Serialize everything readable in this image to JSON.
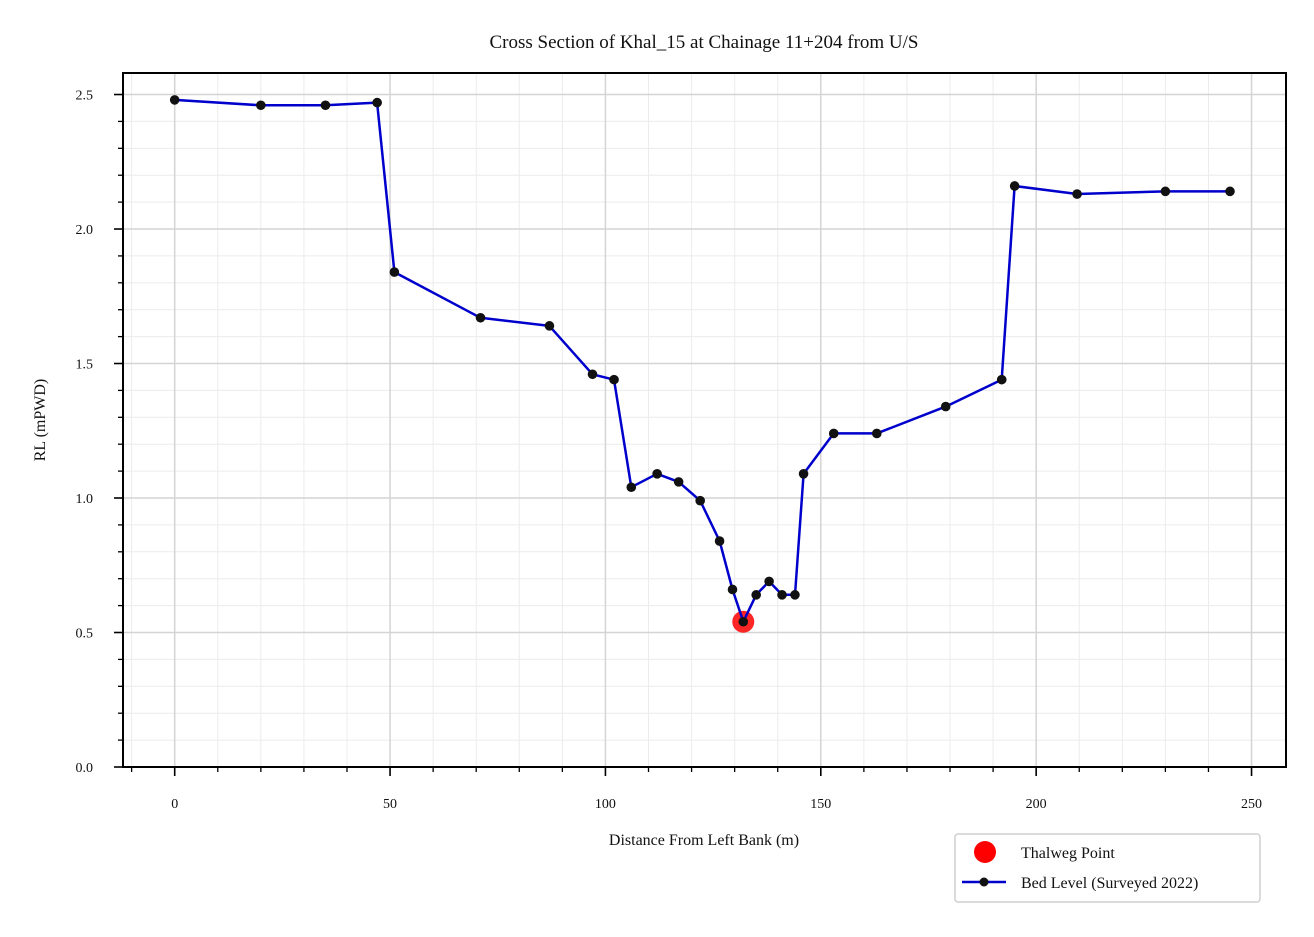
{
  "chart_data": {
    "type": "line",
    "title": "Cross Section of Khal_15 at Chainage 11+204 from U/S",
    "xlabel": "Distance From Left Bank (m)",
    "ylabel": "RL (mPWD)",
    "xlim": [
      -12,
      258
    ],
    "ylim": [
      0,
      2.58
    ],
    "xticks": [
      0,
      50,
      100,
      150,
      200,
      250
    ],
    "yticks": [
      0.0,
      0.5,
      1.0,
      1.5,
      2.0,
      2.5
    ],
    "xtick_labels": [
      "0",
      "50",
      "100",
      "150",
      "200",
      "250"
    ],
    "ytick_labels": [
      "0.0",
      "0.5",
      "1.0",
      "1.5",
      "2.0",
      "2.5"
    ],
    "grid": true,
    "minor_grid": true,
    "legend_position": "bottom-right",
    "series": [
      {
        "name": "Bed Level (Surveyed 2022)",
        "color": "#0000cc",
        "marker_color": "#111111",
        "x": [
          0,
          20,
          35,
          47,
          51,
          71,
          87,
          97,
          102,
          106,
          112,
          117,
          122,
          126.5,
          129.5,
          132,
          135,
          138,
          141,
          144,
          146,
          153,
          163,
          179,
          192,
          195,
          209.5,
          230,
          245
        ],
        "y": [
          2.48,
          2.46,
          2.46,
          2.47,
          1.84,
          1.67,
          1.64,
          1.46,
          1.44,
          1.04,
          1.09,
          1.06,
          0.99,
          0.84,
          0.66,
          0.54,
          0.64,
          0.69,
          0.64,
          0.64,
          1.09,
          1.24,
          1.24,
          1.34,
          1.44,
          2.16,
          2.13,
          2.14,
          2.14
        ]
      }
    ],
    "thalweg": {
      "name": "Thalweg Point",
      "color": "#ff0000",
      "x": 132,
      "y": 0.54
    }
  }
}
